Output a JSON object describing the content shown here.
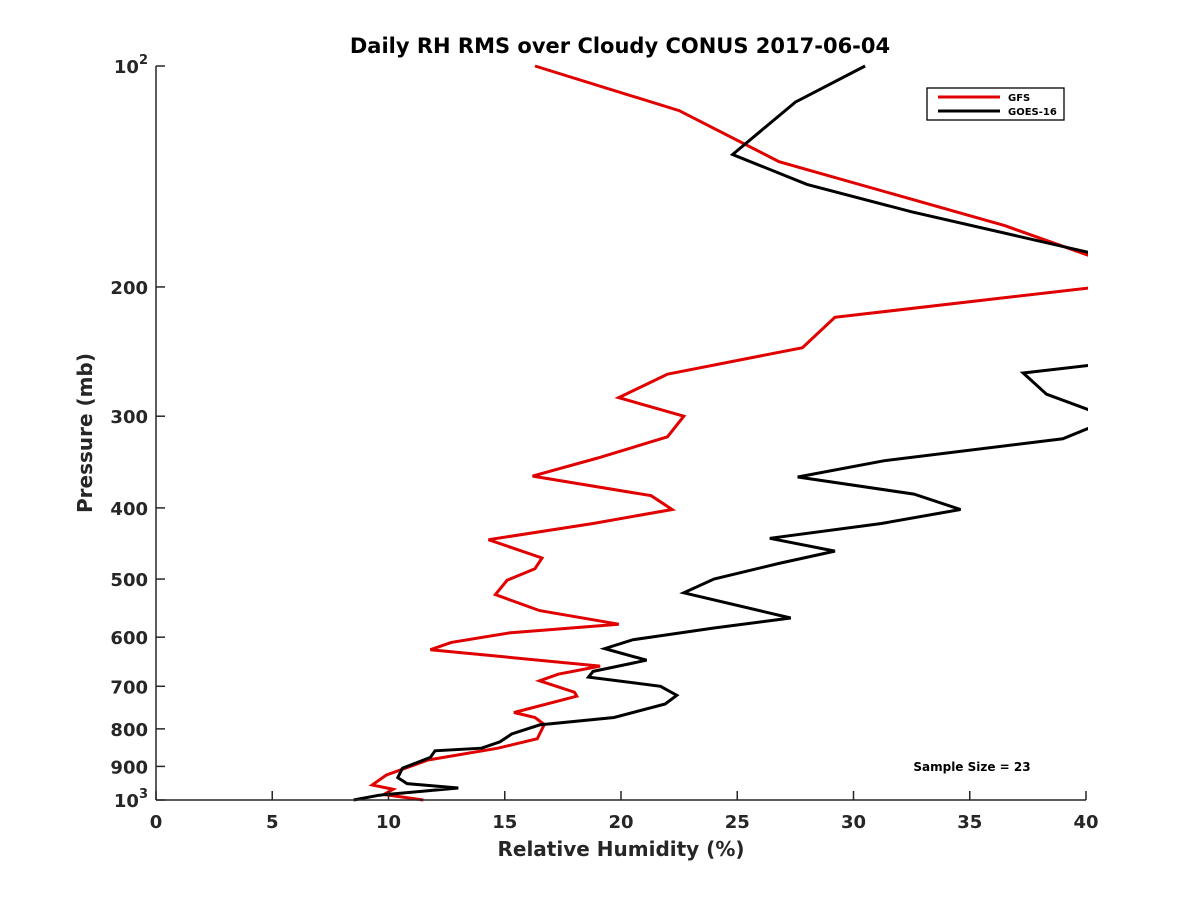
{
  "chart_data": {
    "type": "line",
    "title": "Daily RH RMS over Cloudy CONUS 2017-06-04",
    "xlabel": "Relative Humidity (%)",
    "ylabel": "Pressure (mb)",
    "xlim": [
      0,
      40
    ],
    "ylim": [
      100,
      1000
    ],
    "yscale": "log",
    "y_reversed": true,
    "grid": false,
    "legend_position": "top-right",
    "x_ticks": [
      {
        "value": 0,
        "label": "0"
      },
      {
        "value": 5,
        "label": "5"
      },
      {
        "value": 10,
        "label": "10"
      },
      {
        "value": 15,
        "label": "15"
      },
      {
        "value": 20,
        "label": "20"
      },
      {
        "value": 25,
        "label": "25"
      },
      {
        "value": 30,
        "label": "30"
      },
      {
        "value": 35,
        "label": "35"
      },
      {
        "value": 40,
        "label": "40"
      }
    ],
    "y_ticks": [
      {
        "value": 100,
        "base": "10",
        "exp": "2"
      },
      {
        "value": 200,
        "base": "200",
        "exp": ""
      },
      {
        "value": 300,
        "base": "300",
        "exp": ""
      },
      {
        "value": 400,
        "base": "400",
        "exp": ""
      },
      {
        "value": 500,
        "base": "500",
        "exp": ""
      },
      {
        "value": 600,
        "base": "600",
        "exp": ""
      },
      {
        "value": 700,
        "base": "700",
        "exp": ""
      },
      {
        "value": 800,
        "base": "800",
        "exp": ""
      },
      {
        "value": 900,
        "base": "900",
        "exp": ""
      },
      {
        "value": 1000,
        "base": "10",
        "exp": "3"
      }
    ],
    "annotation": "Sample Size = 23",
    "series": [
      {
        "name": "GFS",
        "color": "#e00000",
        "points": [
          [
            16.3,
            100
          ],
          [
            22.5,
            115
          ],
          [
            26.8,
            135
          ],
          [
            36.5,
            165
          ],
          [
            40.5,
            183
          ],
          [
            40.5,
            200
          ],
          [
            29.2,
            220
          ],
          [
            27.8,
            242
          ],
          [
            22.0,
            263
          ],
          [
            19.9,
            283
          ],
          [
            22.7,
            300
          ],
          [
            22.0,
            320
          ],
          [
            19.0,
            342
          ],
          [
            16.2,
            362
          ],
          [
            21.3,
            385
          ],
          [
            22.2,
            402
          ],
          [
            18.8,
            420
          ],
          [
            14.3,
            442
          ],
          [
            16.6,
            468
          ],
          [
            16.3,
            484
          ],
          [
            15.1,
            502
          ],
          [
            14.6,
            525
          ],
          [
            16.5,
            552
          ],
          [
            19.9,
            576
          ],
          [
            15.2,
            592
          ],
          [
            12.7,
            610
          ],
          [
            11.8,
            624
          ],
          [
            19.1,
            657
          ],
          [
            17.3,
            674
          ],
          [
            16.5,
            688
          ],
          [
            18.0,
            713
          ],
          [
            18.1,
            722
          ],
          [
            15.4,
            760
          ],
          [
            16.3,
            772
          ],
          [
            16.7,
            789
          ],
          [
            16.4,
            825
          ],
          [
            14.7,
            850
          ],
          [
            11.7,
            882
          ],
          [
            9.9,
            925
          ],
          [
            9.3,
            954
          ],
          [
            10.2,
            967
          ],
          [
            9.8,
            983
          ],
          [
            11.5,
            1000
          ]
        ]
      },
      {
        "name": "GOES-16",
        "color": "#000000",
        "points": [
          [
            30.5,
            100
          ],
          [
            27.5,
            112
          ],
          [
            24.8,
            132
          ],
          [
            28.0,
            145
          ],
          [
            32.5,
            158
          ],
          [
            40.3,
            180
          ],
          [
            40.5,
            255
          ],
          [
            37.3,
            262
          ],
          [
            38.3,
            280
          ],
          [
            40.5,
            297
          ],
          [
            40.5,
            308
          ],
          [
            39.0,
            322
          ],
          [
            31.3,
            345
          ],
          [
            27.6,
            363
          ],
          [
            32.6,
            383
          ],
          [
            34.6,
            402
          ],
          [
            31.2,
            420
          ],
          [
            26.4,
            440
          ],
          [
            29.2,
            458
          ],
          [
            26.8,
            476
          ],
          [
            24.0,
            500
          ],
          [
            22.7,
            522
          ],
          [
            27.3,
            565
          ],
          [
            24.0,
            583
          ],
          [
            20.5,
            605
          ],
          [
            19.3,
            622
          ],
          [
            21.1,
            645
          ],
          [
            18.8,
            668
          ],
          [
            18.6,
            680
          ],
          [
            21.7,
            700
          ],
          [
            22.4,
            720
          ],
          [
            21.9,
            740
          ],
          [
            19.7,
            772
          ],
          [
            16.5,
            790
          ],
          [
            15.3,
            813
          ],
          [
            14.8,
            833
          ],
          [
            14.0,
            850
          ],
          [
            12.0,
            857
          ],
          [
            11.8,
            875
          ],
          [
            10.6,
            905
          ],
          [
            10.4,
            932
          ],
          [
            10.8,
            950
          ],
          [
            13.0,
            963
          ],
          [
            9.6,
            985
          ],
          [
            8.5,
            1000
          ]
        ]
      }
    ]
  }
}
